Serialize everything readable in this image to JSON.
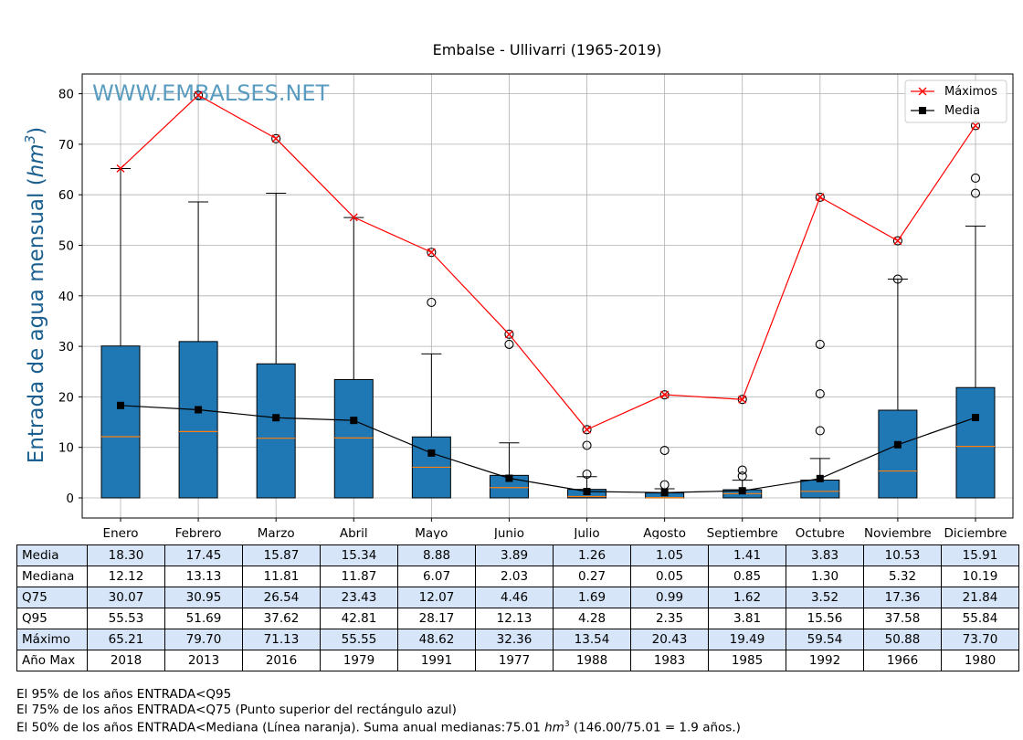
{
  "chart_data": {
    "type": "box",
    "title": "Embalse - Ullivarri (1965-2019)",
    "watermark": "WWW.EMBALSES.NET",
    "ylabel_text": "Entrada de agua mensual (",
    "ylabel_unit": "hm",
    "ylabel_exp": "3",
    "ylabel_close": ")",
    "ylim": [
      -4,
      84
    ],
    "yticks": [
      0,
      10,
      20,
      30,
      40,
      50,
      60,
      70,
      80
    ],
    "grid": true,
    "legend_position": "top-right",
    "legend": [
      {
        "label": "Máximos",
        "color": "#ff0000",
        "marker": "x"
      },
      {
        "label": "Media",
        "color": "#000000",
        "marker": "square"
      }
    ],
    "colors": {
      "box_fill": "#1f77b4",
      "median_line": "#ff7f0e",
      "max_line": "#ff0000",
      "mean_line": "#000000",
      "watermark": "#5a9cc0",
      "table_shade": "#d6e5f7"
    },
    "categories": [
      "Enero",
      "Febrero",
      "Marzo",
      "Abril",
      "Mayo",
      "Junio",
      "Julio",
      "Agosto",
      "Septiembre",
      "Octubre",
      "Noviembre",
      "Diciembre"
    ],
    "box_lower": [
      0,
      0,
      0,
      0,
      0,
      0,
      0,
      0,
      0,
      0,
      0,
      0
    ],
    "media": [
      18.3,
      17.45,
      15.87,
      15.34,
      8.88,
      3.89,
      1.26,
      1.05,
      1.41,
      3.83,
      10.53,
      15.91
    ],
    "mediana": [
      12.12,
      13.13,
      11.81,
      11.87,
      6.07,
      2.03,
      0.27,
      0.05,
      0.85,
      1.3,
      5.32,
      10.19
    ],
    "q75": [
      30.07,
      30.95,
      26.54,
      23.43,
      12.07,
      4.46,
      1.69,
      0.99,
      1.62,
      3.52,
      17.36,
      21.84
    ],
    "q95": [
      55.53,
      51.69,
      37.62,
      42.81,
      28.17,
      12.13,
      4.28,
      2.35,
      3.81,
      15.56,
      37.58,
      55.84
    ],
    "whisker_top": [
      65.2,
      58.6,
      60.3,
      55.5,
      28.5,
      10.9,
      4.2,
      1.8,
      3.5,
      7.8,
      43.3,
      53.8
    ],
    "maximo": [
      65.21,
      79.7,
      71.13,
      55.55,
      48.62,
      32.36,
      13.54,
      20.43,
      19.49,
      59.54,
      50.88,
      73.7
    ],
    "anio_max": [
      "2018",
      "2013",
      "2016",
      "1979",
      "1991",
      "1977",
      "1988",
      "1983",
      "1985",
      "1992",
      "1966",
      "1980"
    ],
    "outliers": [
      [],
      [
        79.7
      ],
      [
        71.1
      ],
      [],
      [
        38.7,
        48.6
      ],
      [
        30.4,
        32.4
      ],
      [
        4.7,
        10.4,
        13.5
      ],
      [
        2.6,
        9.4,
        20.4
      ],
      [
        4.3,
        5.5,
        19.5
      ],
      [
        13.3,
        20.6,
        30.4,
        59.5
      ],
      [
        43.3,
        50.9
      ],
      [
        60.3,
        63.3,
        73.7
      ]
    ]
  },
  "table": {
    "rows": [
      {
        "label": "Media",
        "key": "media"
      },
      {
        "label": "Mediana",
        "key": "mediana"
      },
      {
        "label": "Q75",
        "key": "q75"
      },
      {
        "label": "Q95",
        "key": "q95"
      },
      {
        "label": "Máximo",
        "key": "maximo"
      },
      {
        "label": "Año Max",
        "key": "anio_max"
      }
    ]
  },
  "notes": {
    "line1": "El 95% de los años ENTRADA<Q95",
    "line2": "El 75% de los años ENTRADA<Q75 (Punto superior del rectángulo azul)",
    "line3_pre": "El 50% de los años ENTRADA<Mediana (Línea naranja). Suma anual medianas:75.01 ",
    "line3_unit": "hm",
    "line3_exp": "3",
    "line3_post": " (146.00/75.01 = 1.9 años.)"
  }
}
